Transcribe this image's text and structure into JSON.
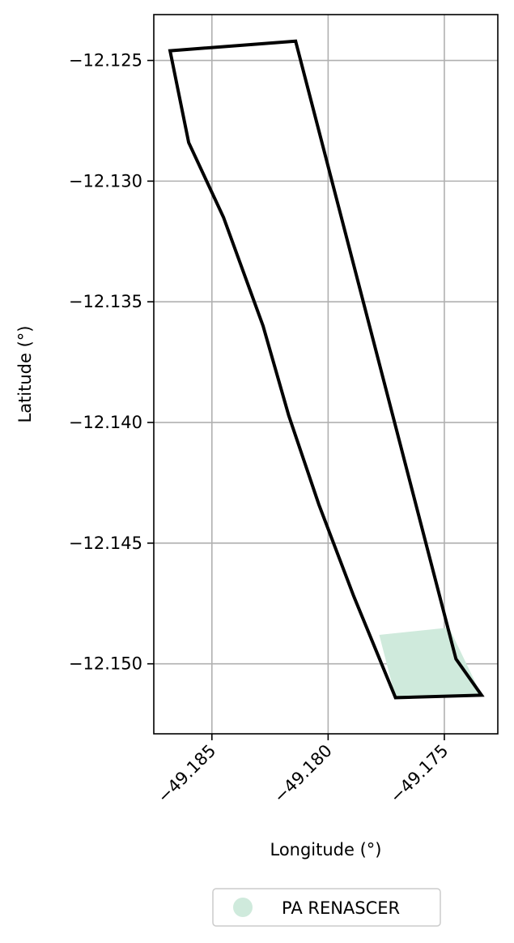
{
  "chart_data": {
    "type": "map",
    "xlabel": "Longitude (°)",
    "ylabel": "Latitude (°)",
    "xlim": [
      -49.1875,
      -49.1727
    ],
    "ylim": [
      -12.1529,
      -12.1231
    ],
    "grid": true,
    "x_ticks": [
      {
        "value": -49.185,
        "label": "−49.185"
      },
      {
        "value": -49.18,
        "label": "−49.180"
      },
      {
        "value": -49.175,
        "label": "−49.175"
      }
    ],
    "y_ticks": [
      {
        "value": -12.125,
        "label": "−12.125"
      },
      {
        "value": -12.13,
        "label": "−12.130"
      },
      {
        "value": -12.135,
        "label": "−12.135"
      },
      {
        "value": -12.14,
        "label": "−12.140"
      },
      {
        "value": -12.145,
        "label": "−12.145"
      },
      {
        "value": -12.15,
        "label": "−12.150"
      }
    ],
    "boundary": {
      "color": "#000000",
      "coords": [
        [
          -49.1868,
          -12.1246
        ],
        [
          -49.1814,
          -12.1242
        ],
        [
          -49.1745,
          -12.1498
        ],
        [
          -49.1734,
          -12.1513
        ],
        [
          -49.1771,
          -12.1514
        ],
        [
          -49.1789,
          -12.1472
        ],
        [
          -49.1804,
          -12.1434
        ],
        [
          -49.1817,
          -12.1397
        ],
        [
          -49.1828,
          -12.136
        ],
        [
          -49.1845,
          -12.1315
        ],
        [
          -49.186,
          -12.1284
        ],
        [
          -49.1868,
          -12.1246
        ]
      ]
    },
    "layers": [
      {
        "name": "PA RENASCER",
        "color": "#cfeadc",
        "coords": [
          [
            -49.1778,
            -12.1488
          ],
          [
            -49.1748,
            -12.1485
          ],
          [
            -49.1734,
            -12.1513
          ],
          [
            -49.1771,
            -12.1514
          ]
        ]
      }
    ],
    "legend": {
      "position": "bottom-center",
      "entries": [
        {
          "label": "PA RENASCER",
          "color": "#cfeadc"
        }
      ]
    }
  }
}
